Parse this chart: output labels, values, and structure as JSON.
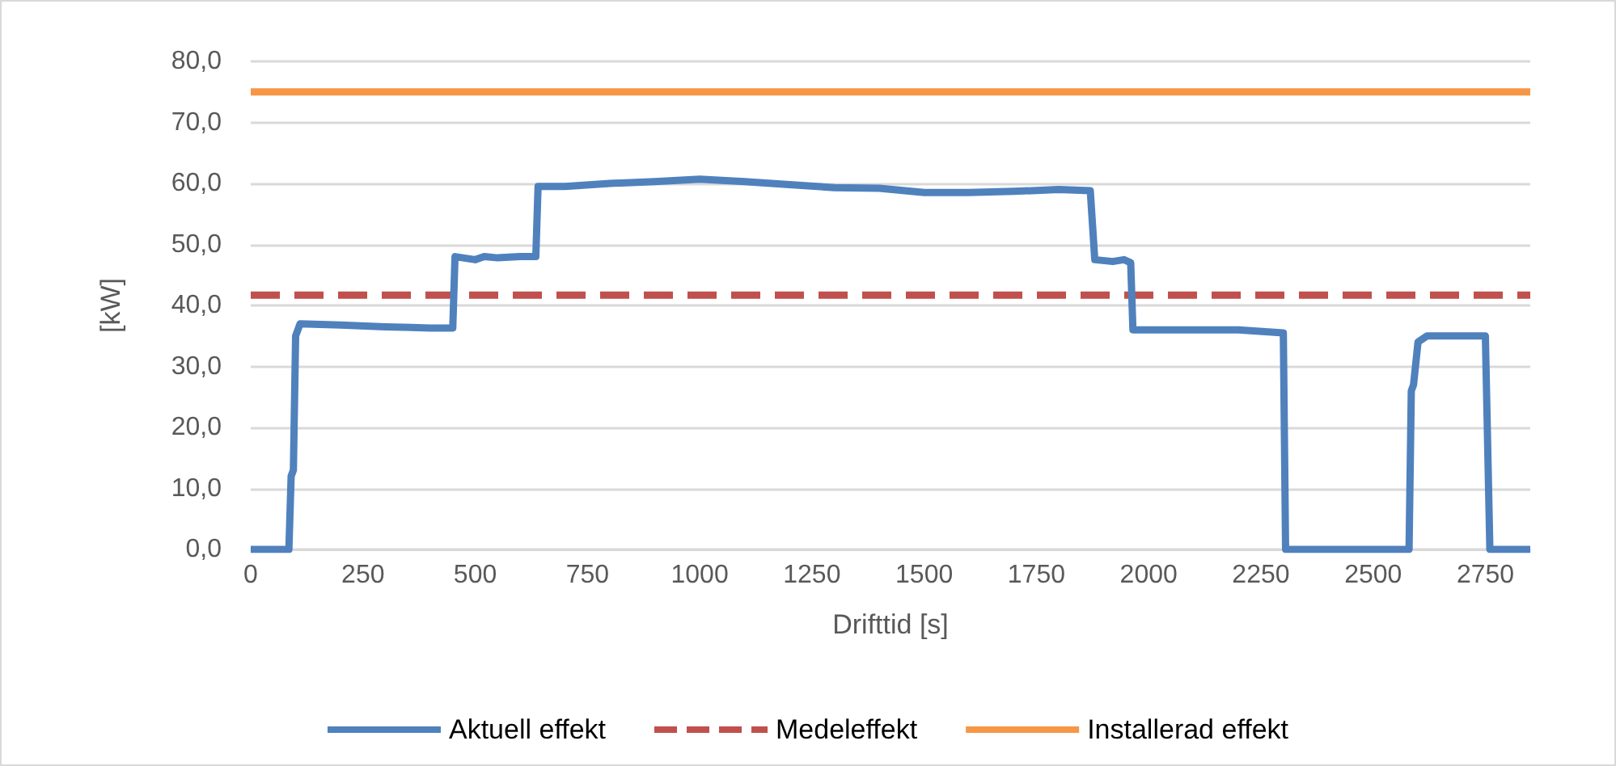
{
  "chart_data": {
    "type": "line",
    "xlabel": "Drifttid [s]",
    "ylabel": "[kW]",
    "xlim": [
      0,
      2850
    ],
    "xticks": [
      0,
      250,
      500,
      750,
      1000,
      1250,
      1500,
      1750,
      2000,
      2250,
      2500,
      2750
    ],
    "ylim": [
      0,
      80
    ],
    "yticks": [
      {
        "value": 0,
        "label": "0,0"
      },
      {
        "value": 10,
        "label": "10,0"
      },
      {
        "value": 20,
        "label": "20,0"
      },
      {
        "value": 30,
        "label": "30,0"
      },
      {
        "value": 40,
        "label": "40,0"
      },
      {
        "value": 50,
        "label": "50,0"
      },
      {
        "value": 60,
        "label": "60,0"
      },
      {
        "value": 70,
        "label": "70,0"
      },
      {
        "value": 80,
        "label": "80,0"
      }
    ],
    "grid": "y",
    "legend": "bottom",
    "marker": "none",
    "series": [
      {
        "name": "Aktuell effekt",
        "color": "#4f81bd",
        "line_style": "solid",
        "x": [
          0,
          85,
          90,
          95,
          100,
          110,
          200,
          300,
          400,
          450,
          455,
          500,
          520,
          550,
          600,
          635,
          640,
          700,
          800,
          900,
          1000,
          1100,
          1200,
          1300,
          1400,
          1500,
          1600,
          1700,
          1800,
          1870,
          1880,
          1920,
          1945,
          1960,
          1965,
          2100,
          2200,
          2300,
          2305,
          2580,
          2585,
          2590,
          2600,
          2620,
          2750,
          2760,
          2850
        ],
        "values": [
          0,
          0,
          12,
          13,
          35,
          37,
          36.8,
          36.5,
          36.3,
          36.3,
          48,
          47.5,
          48,
          47.8,
          48,
          48,
          59.5,
          59.5,
          60,
          60.3,
          60.7,
          60.3,
          59.8,
          59.3,
          59.2,
          58.5,
          58.5,
          58.7,
          59,
          58.8,
          47.5,
          47.2,
          47.5,
          47,
          36,
          36,
          36,
          35.5,
          0,
          0,
          26,
          27,
          34,
          35,
          35,
          0,
          0
        ]
      },
      {
        "name": "Medeleffekt",
        "color": "#c0504d",
        "line_style": "dashed",
        "x": [
          0,
          2850
        ],
        "values": [
          41.7,
          41.7
        ]
      },
      {
        "name": "Installerad effekt",
        "color": "#f79646",
        "line_style": "solid",
        "x": [
          0,
          2850
        ],
        "values": [
          75,
          75
        ]
      }
    ]
  }
}
